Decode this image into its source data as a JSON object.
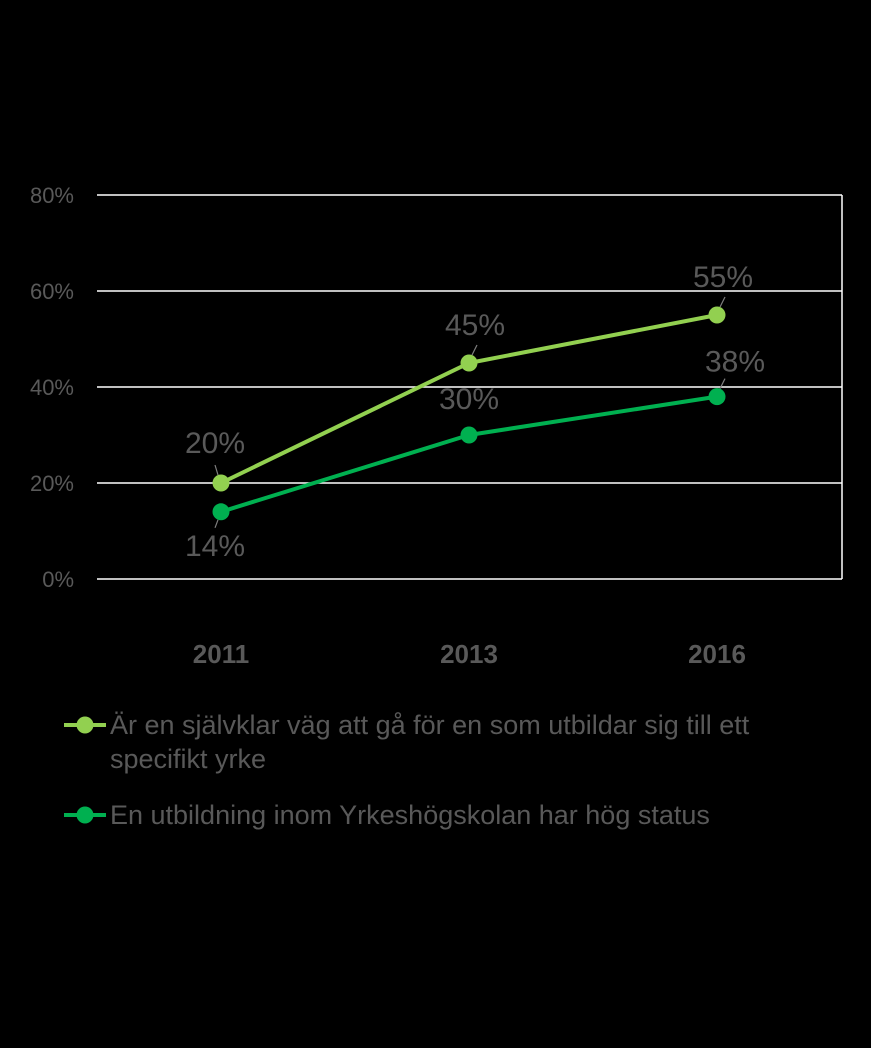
{
  "chart_data": {
    "type": "line",
    "categories": [
      "2011",
      "2013",
      "2016"
    ],
    "ylim": [
      0,
      80
    ],
    "yticks": [
      "0%",
      "20%",
      "40%",
      "60%",
      "80%"
    ],
    "grid": true,
    "legend_position": "bottom",
    "series": [
      {
        "name": "Är en självklar väg att gå för en som utbildar sig till ett specifikt yrke",
        "values": [
          20,
          45,
          55
        ],
        "labels": [
          "20%",
          "45%",
          "55%"
        ],
        "color": "#92D050"
      },
      {
        "name": "En utbildning inom Yrkeshögskolan har hög status",
        "values": [
          14,
          30,
          38
        ],
        "labels": [
          "14%",
          "30%",
          "38%"
        ],
        "color": "#00B050"
      }
    ]
  },
  "colors": {
    "background": "#000000",
    "gridline": "#FFFFFF",
    "tick_label": "#595959",
    "category_label": "#595959",
    "data_label": "#595959"
  }
}
